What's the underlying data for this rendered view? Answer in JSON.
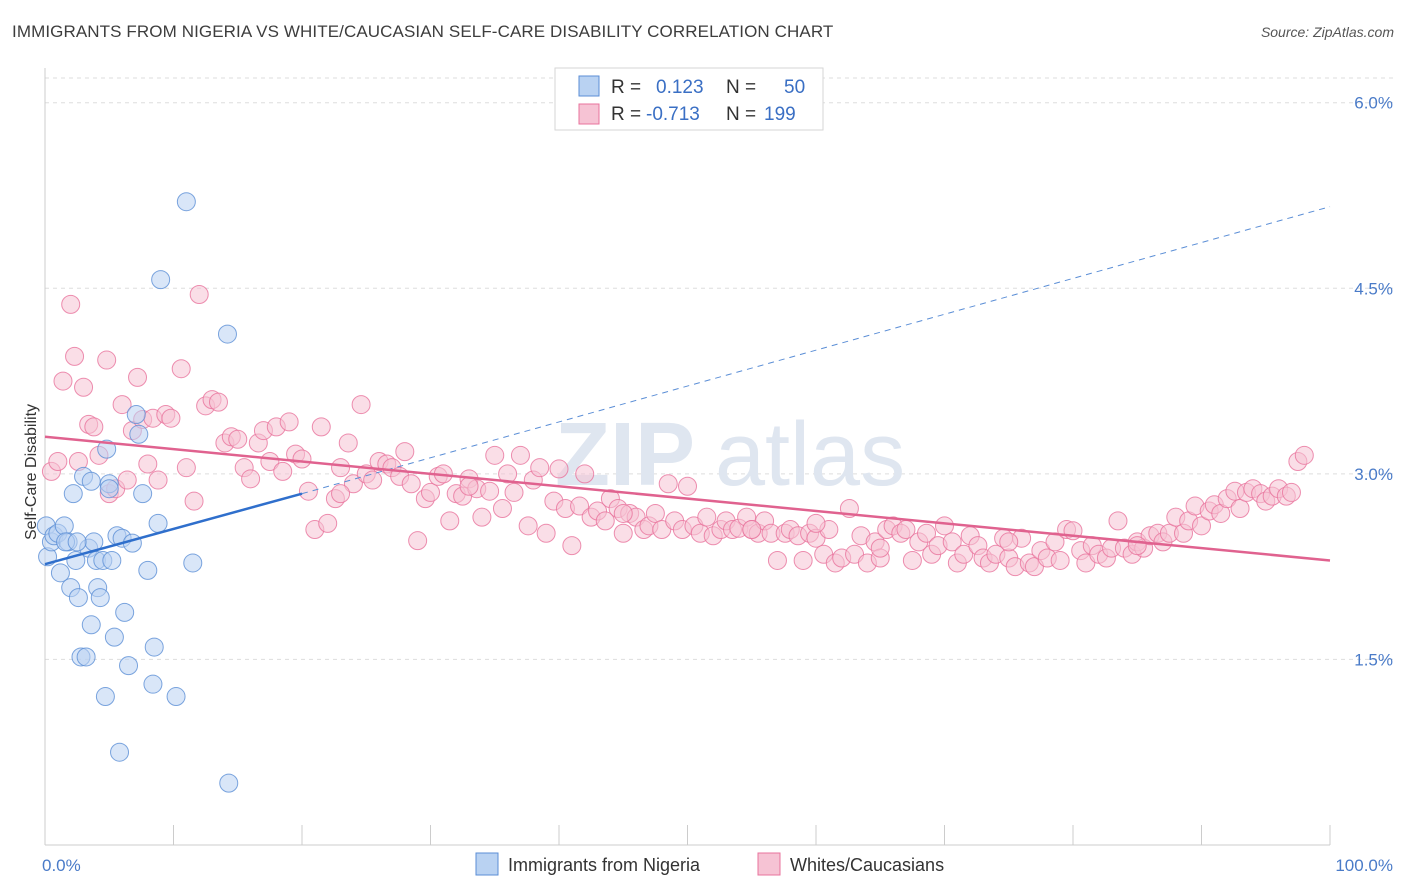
{
  "title": "IMMIGRANTS FROM NIGERIA VS WHITE/CAUCASIAN SELF-CARE DISABILITY CORRELATION CHART",
  "source": "Source: ZipAtlas.com",
  "watermark": {
    "zip": "ZIP",
    "atlas": "atlas"
  },
  "colors": {
    "blue": "#5b8ed6",
    "blue_fill": "#b9d2f2",
    "pink": "#e8739c",
    "pink_fill": "#f6c3d4",
    "grid": "#dddddd"
  },
  "legend": {
    "rows": [
      {
        "r_label": "R =",
        "r_value": "0.123",
        "n_label": "N =",
        "n_value": "50"
      },
      {
        "r_label": "R =",
        "r_value": "-0.713",
        "n_label": "N =",
        "n_value": "199"
      }
    ]
  },
  "bottom_legend": [
    "Immigrants from Nigeria",
    "Whites/Caucasians"
  ],
  "chart_data": {
    "type": "scatter",
    "title": "IMMIGRANTS FROM NIGERIA VS WHITE/CAUCASIAN SELF-CARE DISABILITY CORRELATION CHART",
    "xlabel": "",
    "ylabel": "Self-Care Disability",
    "x_tick_labels": [
      "0.0%",
      "100.0%"
    ],
    "y_tick_labels": [
      "1.5%",
      "3.0%",
      "4.5%",
      "6.0%"
    ],
    "y_ticks": [
      1.5,
      3.0,
      4.5,
      6.0
    ],
    "xlim": [
      0,
      100
    ],
    "ylim": [
      0,
      6.2
    ],
    "grid": true,
    "legend_position": "top-center",
    "series": [
      {
        "name": "Immigrants from Nigeria",
        "color": "#5b8ed6",
        "r": 0.123,
        "n": 50,
        "trend": {
          "x": [
            0,
            20
          ],
          "y": [
            2.27,
            2.84
          ],
          "extended": {
            "x": [
              20,
              100
            ],
            "y": [
              2.84,
              5.16
            ]
          }
        },
        "points": [
          [
            0.1,
            2.58
          ],
          [
            0.2,
            2.33
          ],
          [
            0.5,
            2.45
          ],
          [
            0.7,
            2.5
          ],
          [
            1.0,
            2.52
          ],
          [
            1.2,
            2.2
          ],
          [
            1.5,
            2.58
          ],
          [
            1.8,
            2.45
          ],
          [
            2.0,
            2.08
          ],
          [
            2.2,
            2.84
          ],
          [
            2.4,
            2.3
          ],
          [
            2.6,
            2.0
          ],
          [
            2.8,
            1.52
          ],
          [
            3.0,
            2.98
          ],
          [
            3.2,
            1.52
          ],
          [
            3.4,
            2.4
          ],
          [
            3.6,
            2.94
          ],
          [
            3.6,
            1.78
          ],
          [
            3.8,
            2.45
          ],
          [
            4.0,
            2.3
          ],
          [
            4.1,
            2.08
          ],
          [
            4.3,
            2.0
          ],
          [
            4.5,
            2.3
          ],
          [
            4.7,
            1.2
          ],
          [
            4.8,
            3.2
          ],
          [
            5.0,
            2.92
          ],
          [
            5.0,
            2.88
          ],
          [
            5.4,
            1.68
          ],
          [
            5.6,
            2.5
          ],
          [
            5.8,
            0.75
          ],
          [
            6.0,
            2.48
          ],
          [
            6.2,
            1.88
          ],
          [
            6.8,
            2.44
          ],
          [
            6.5,
            1.45
          ],
          [
            7.1,
            3.48
          ],
          [
            7.3,
            3.32
          ],
          [
            7.6,
            2.84
          ],
          [
            8.0,
            2.22
          ],
          [
            8.4,
            1.3
          ],
          [
            8.5,
            1.6
          ],
          [
            8.8,
            2.6
          ],
          [
            9.0,
            4.57
          ],
          [
            10.2,
            1.2
          ],
          [
            11.0,
            5.2
          ],
          [
            11.5,
            2.28
          ],
          [
            14.2,
            4.13
          ],
          [
            14.3,
            0.5
          ],
          [
            5.2,
            2.3
          ],
          [
            1.6,
            2.45
          ],
          [
            2.5,
            2.45
          ]
        ]
      },
      {
        "name": "Whites/Caucasians",
        "color": "#e8739c",
        "r": -0.713,
        "n": 199,
        "trend": {
          "x": [
            0,
            100
          ],
          "y": [
            3.3,
            2.3
          ]
        },
        "points": [
          [
            0.5,
            3.02
          ],
          [
            1.0,
            3.1
          ],
          [
            1.4,
            3.75
          ],
          [
            2.0,
            4.37
          ],
          [
            2.3,
            3.95
          ],
          [
            2.6,
            3.1
          ],
          [
            3.0,
            3.7
          ],
          [
            3.4,
            3.4
          ],
          [
            3.8,
            3.38
          ],
          [
            4.2,
            3.15
          ],
          [
            4.8,
            3.92
          ],
          [
            5.0,
            2.84
          ],
          [
            5.5,
            2.88
          ],
          [
            6.0,
            3.56
          ],
          [
            6.4,
            2.95
          ],
          [
            6.8,
            3.35
          ],
          [
            7.2,
            3.78
          ],
          [
            7.6,
            3.44
          ],
          [
            8.0,
            3.08
          ],
          [
            8.4,
            3.45
          ],
          [
            8.8,
            2.95
          ],
          [
            9.4,
            3.48
          ],
          [
            9.8,
            3.45
          ],
          [
            10.6,
            3.85
          ],
          [
            11.0,
            3.05
          ],
          [
            11.6,
            2.78
          ],
          [
            12.0,
            4.45
          ],
          [
            12.5,
            3.55
          ],
          [
            13.0,
            3.6
          ],
          [
            13.5,
            3.58
          ],
          [
            14.0,
            3.25
          ],
          [
            14.5,
            3.3
          ],
          [
            15.0,
            3.28
          ],
          [
            15.5,
            3.05
          ],
          [
            16.0,
            2.96
          ],
          [
            16.6,
            3.25
          ],
          [
            17.0,
            3.35
          ],
          [
            17.5,
            3.1
          ],
          [
            18.0,
            3.38
          ],
          [
            18.5,
            3.02
          ],
          [
            19.0,
            3.42
          ],
          [
            19.5,
            3.16
          ],
          [
            20.0,
            3.12
          ],
          [
            20.5,
            2.86
          ],
          [
            21.0,
            2.55
          ],
          [
            21.5,
            3.38
          ],
          [
            22.0,
            2.6
          ],
          [
            22.6,
            2.8
          ],
          [
            23.0,
            3.05
          ],
          [
            23.6,
            3.25
          ],
          [
            24.0,
            2.92
          ],
          [
            24.6,
            3.56
          ],
          [
            25.0,
            3.0
          ],
          [
            25.5,
            2.95
          ],
          [
            26.0,
            3.1
          ],
          [
            26.6,
            3.08
          ],
          [
            27.0,
            3.05
          ],
          [
            27.6,
            2.98
          ],
          [
            28.0,
            3.18
          ],
          [
            28.5,
            2.92
          ],
          [
            29.0,
            2.46
          ],
          [
            29.6,
            2.8
          ],
          [
            30.0,
            2.85
          ],
          [
            30.6,
            2.98
          ],
          [
            31.0,
            3.0
          ],
          [
            31.5,
            2.62
          ],
          [
            32.0,
            2.84
          ],
          [
            32.5,
            2.82
          ],
          [
            33.0,
            2.96
          ],
          [
            33.6,
            2.88
          ],
          [
            34.0,
            2.65
          ],
          [
            34.6,
            2.86
          ],
          [
            35.0,
            3.15
          ],
          [
            35.6,
            2.72
          ],
          [
            36.0,
            3.0
          ],
          [
            36.5,
            2.85
          ],
          [
            37.0,
            3.15
          ],
          [
            37.6,
            2.58
          ],
          [
            38.0,
            2.95
          ],
          [
            38.5,
            3.05
          ],
          [
            39.0,
            2.52
          ],
          [
            39.6,
            2.78
          ],
          [
            40.0,
            3.04
          ],
          [
            40.5,
            2.72
          ],
          [
            41.0,
            2.42
          ],
          [
            41.6,
            2.74
          ],
          [
            42.0,
            3.0
          ],
          [
            42.5,
            2.65
          ],
          [
            43.0,
            2.7
          ],
          [
            43.6,
            2.62
          ],
          [
            44.0,
            2.8
          ],
          [
            44.6,
            2.72
          ],
          [
            45.0,
            2.52
          ],
          [
            45.5,
            2.68
          ],
          [
            46.0,
            2.65
          ],
          [
            46.6,
            2.55
          ],
          [
            47.0,
            2.58
          ],
          [
            47.5,
            2.68
          ],
          [
            48.0,
            2.55
          ],
          [
            48.5,
            2.92
          ],
          [
            49.0,
            2.62
          ],
          [
            49.6,
            2.55
          ],
          [
            50.0,
            2.9
          ],
          [
            50.5,
            2.58
          ],
          [
            51.0,
            2.52
          ],
          [
            51.5,
            2.65
          ],
          [
            52.0,
            2.5
          ],
          [
            52.6,
            2.55
          ],
          [
            53.0,
            2.62
          ],
          [
            53.5,
            2.55
          ],
          [
            54.0,
            2.56
          ],
          [
            54.6,
            2.65
          ],
          [
            55.0,
            2.55
          ],
          [
            55.5,
            2.52
          ],
          [
            56.0,
            2.62
          ],
          [
            56.5,
            2.52
          ],
          [
            57.0,
            2.3
          ],
          [
            57.6,
            2.52
          ],
          [
            58.0,
            2.55
          ],
          [
            58.6,
            2.5
          ],
          [
            59.0,
            2.3
          ],
          [
            59.5,
            2.52
          ],
          [
            60.0,
            2.48
          ],
          [
            60.6,
            2.35
          ],
          [
            61.0,
            2.55
          ],
          [
            61.5,
            2.28
          ],
          [
            62.0,
            2.32
          ],
          [
            62.6,
            2.72
          ],
          [
            63.0,
            2.35
          ],
          [
            63.5,
            2.5
          ],
          [
            64.0,
            2.28
          ],
          [
            64.6,
            2.45
          ],
          [
            65.0,
            2.32
          ],
          [
            65.5,
            2.55
          ],
          [
            66.0,
            2.58
          ],
          [
            66.6,
            2.52
          ],
          [
            67.0,
            2.55
          ],
          [
            67.5,
            2.3
          ],
          [
            68.0,
            2.45
          ],
          [
            68.6,
            2.52
          ],
          [
            69.0,
            2.35
          ],
          [
            69.5,
            2.42
          ],
          [
            70.0,
            2.58
          ],
          [
            70.6,
            2.45
          ],
          [
            71.0,
            2.28
          ],
          [
            71.5,
            2.35
          ],
          [
            72.0,
            2.5
          ],
          [
            72.6,
            2.42
          ],
          [
            73.0,
            2.32
          ],
          [
            73.5,
            2.28
          ],
          [
            74.0,
            2.35
          ],
          [
            74.6,
            2.48
          ],
          [
            75.0,
            2.32
          ],
          [
            75.5,
            2.25
          ],
          [
            76.0,
            2.48
          ],
          [
            76.6,
            2.28
          ],
          [
            77.0,
            2.25
          ],
          [
            77.5,
            2.38
          ],
          [
            78.0,
            2.32
          ],
          [
            78.6,
            2.45
          ],
          [
            79.0,
            2.3
          ],
          [
            79.5,
            2.55
          ],
          [
            80.0,
            2.54
          ],
          [
            80.6,
            2.38
          ],
          [
            81.0,
            2.28
          ],
          [
            81.5,
            2.42
          ],
          [
            82.0,
            2.35
          ],
          [
            82.6,
            2.32
          ],
          [
            83.0,
            2.4
          ],
          [
            83.5,
            2.62
          ],
          [
            84.0,
            2.4
          ],
          [
            84.6,
            2.35
          ],
          [
            85.0,
            2.45
          ],
          [
            85.5,
            2.4
          ],
          [
            86.0,
            2.5
          ],
          [
            86.6,
            2.52
          ],
          [
            87.0,
            2.45
          ],
          [
            87.5,
            2.52
          ],
          [
            88.0,
            2.65
          ],
          [
            88.6,
            2.52
          ],
          [
            89.0,
            2.62
          ],
          [
            89.5,
            2.74
          ],
          [
            90.0,
            2.58
          ],
          [
            90.6,
            2.7
          ],
          [
            91.0,
            2.75
          ],
          [
            91.5,
            2.68
          ],
          [
            92.0,
            2.8
          ],
          [
            92.6,
            2.86
          ],
          [
            93.0,
            2.72
          ],
          [
            93.5,
            2.85
          ],
          [
            94.0,
            2.88
          ],
          [
            94.6,
            2.84
          ],
          [
            95.0,
            2.78
          ],
          [
            95.5,
            2.82
          ],
          [
            96.0,
            2.88
          ],
          [
            96.6,
            2.82
          ],
          [
            97.0,
            2.85
          ],
          [
            97.5,
            3.1
          ],
          [
            98.0,
            3.15
          ],
          [
            23.0,
            2.84
          ],
          [
            33.0,
            2.9
          ],
          [
            45.0,
            2.68
          ],
          [
            55.0,
            2.55
          ],
          [
            65.0,
            2.4
          ],
          [
            75.0,
            2.45
          ],
          [
            85.0,
            2.42
          ],
          [
            60.0,
            2.6
          ]
        ]
      }
    ]
  }
}
